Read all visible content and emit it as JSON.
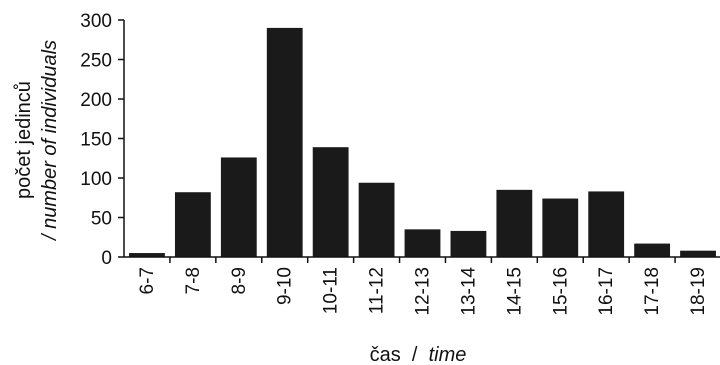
{
  "chart_data": {
    "type": "bar",
    "title": "",
    "categories": [
      "6-7",
      "7-8",
      "8-9",
      "9-10",
      "10-11",
      "11-12",
      "12-13",
      "13-14",
      "14-15",
      "15-16",
      "16-17",
      "17-18",
      "18-19"
    ],
    "values": [
      5,
      82,
      126,
      290,
      139,
      94,
      35,
      33,
      85,
      74,
      83,
      17,
      8
    ],
    "ylim": [
      0,
      300
    ],
    "yticks": [
      0,
      50,
      100,
      150,
      200,
      250,
      300
    ],
    "xlabel": {
      "primary": "čas",
      "separator": " / ",
      "secondary": "time"
    },
    "ylabel": {
      "primary": "počet jedinců",
      "secondary": "/ number of individuals"
    },
    "grid": false,
    "legend": "none",
    "bar_color": "#1a1a1a",
    "axis_color": "#111111"
  }
}
